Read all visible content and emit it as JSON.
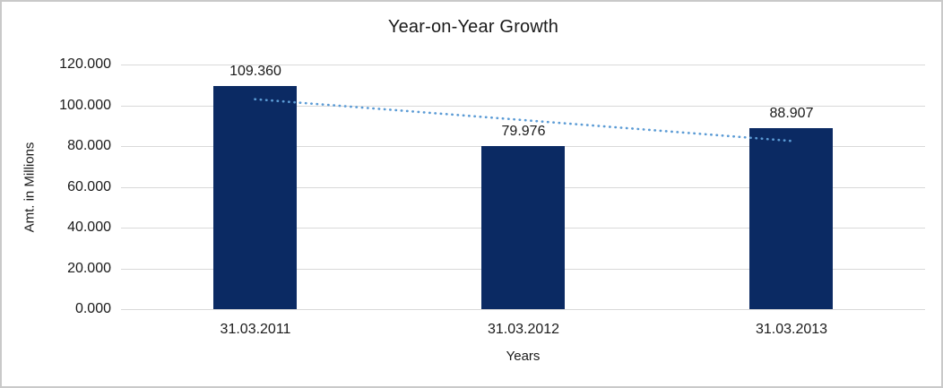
{
  "chart_data": {
    "type": "bar",
    "title": "Year-on-Year Growth",
    "xlabel": "Years",
    "ylabel": "Amt. in Millions",
    "categories": [
      "31.03.2011",
      "31.03.2012",
      "31.03.2013"
    ],
    "values": [
      109360,
      79976,
      88907
    ],
    "data_labels": [
      "109.360",
      "79.976",
      "88.907"
    ],
    "ylim": [
      0,
      120000
    ],
    "ytick_step": 20000,
    "ytick_labels": [
      "0.000",
      "20.000",
      "40.000",
      "60.000",
      "80.000",
      "100.000",
      "120.000"
    ],
    "grid": true,
    "legend": "none",
    "trendline": {
      "type": "linear",
      "style": "dotted",
      "fit_values": [
        102974,
        92748,
        82521
      ]
    },
    "colors": {
      "bar": "#0b2a63",
      "trendline": "#5b9bd5",
      "gridline": "#d9d9d9",
      "text": "#1a1a1a",
      "frame_border": "#c9c9c9"
    }
  }
}
